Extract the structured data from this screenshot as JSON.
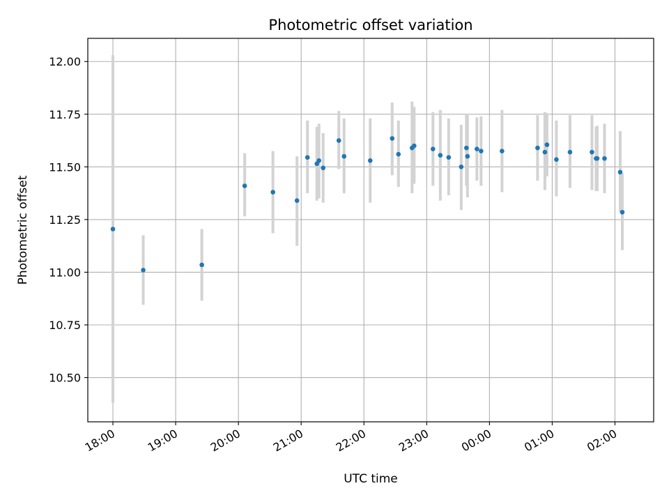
{
  "chart_data": {
    "type": "scatter",
    "title": "Photometric offset variation",
    "xlabel": "UTC time",
    "ylabel": "Photometric offset",
    "x_axis": "time",
    "xlim": [
      "17:36",
      "02:37"
    ],
    "ylim": [
      10.29,
      12.11
    ],
    "x_ticks": [
      "18:00",
      "19:00",
      "20:00",
      "21:00",
      "22:00",
      "23:00",
      "00:00",
      "01:00",
      "02:00"
    ],
    "y_ticks": [
      10.5,
      10.75,
      11.0,
      11.25,
      11.5,
      11.75,
      12.0
    ],
    "y_tick_labels": [
      "10.50",
      "10.75",
      "11.00",
      "11.25",
      "11.50",
      "11.75",
      "12.00"
    ],
    "grid": true,
    "colors": {
      "point": "#1f77b4",
      "errorbar": "#d3d3d3",
      "grid": "#b0b0b0"
    },
    "series": [
      {
        "points": [
          {
            "t": "18:00",
            "y": 11.205,
            "lo": 10.38,
            "hi": 12.03
          },
          {
            "t": "18:29",
            "y": 11.01,
            "lo": 10.845,
            "hi": 11.175
          },
          {
            "t": "19:25",
            "y": 11.035,
            "lo": 10.865,
            "hi": 11.205
          },
          {
            "t": "20:06",
            "y": 11.41,
            "lo": 11.265,
            "hi": 11.565
          },
          {
            "t": "20:33",
            "y": 11.38,
            "lo": 11.185,
            "hi": 11.575
          },
          {
            "t": "20:56",
            "y": 11.34,
            "lo": 11.125,
            "hi": 11.55
          },
          {
            "t": "21:06",
            "y": 11.545,
            "lo": 11.375,
            "hi": 11.72
          },
          {
            "t": "21:15",
            "y": 11.515,
            "lo": 11.34,
            "hi": 11.69
          },
          {
            "t": "21:17",
            "y": 11.53,
            "lo": 11.35,
            "hi": 11.705
          },
          {
            "t": "21:21",
            "y": 11.495,
            "lo": 11.33,
            "hi": 11.66
          },
          {
            "t": "21:36",
            "y": 11.625,
            "lo": 11.49,
            "hi": 11.765
          },
          {
            "t": "21:41",
            "y": 11.55,
            "lo": 11.375,
            "hi": 11.73
          },
          {
            "t": "22:06",
            "y": 11.53,
            "lo": 11.33,
            "hi": 11.73
          },
          {
            "t": "22:27",
            "y": 11.635,
            "lo": 11.46,
            "hi": 11.805
          },
          {
            "t": "22:33",
            "y": 11.56,
            "lo": 11.405,
            "hi": 11.72
          },
          {
            "t": "22:46",
            "y": 11.59,
            "lo": 11.375,
            "hi": 11.81
          },
          {
            "t": "22:48",
            "y": 11.6,
            "lo": 11.42,
            "hi": 11.785
          },
          {
            "t": "23:06",
            "y": 11.585,
            "lo": 11.41,
            "hi": 11.76
          },
          {
            "t": "23:13",
            "y": 11.555,
            "lo": 11.34,
            "hi": 11.77
          },
          {
            "t": "23:21",
            "y": 11.545,
            "lo": 11.365,
            "hi": 11.73
          },
          {
            "t": "23:33",
            "y": 11.5,
            "lo": 11.295,
            "hi": 11.7
          },
          {
            "t": "23:38",
            "y": 11.59,
            "lo": 11.41,
            "hi": 11.75
          },
          {
            "t": "23:39",
            "y": 11.55,
            "lo": 11.355,
            "hi": 11.745
          },
          {
            "t": "23:48",
            "y": 11.585,
            "lo": 11.435,
            "hi": 11.735
          },
          {
            "t": "23:52",
            "y": 11.575,
            "lo": 11.41,
            "hi": 11.74
          },
          {
            "t": "00:12",
            "y": 11.575,
            "lo": 11.38,
            "hi": 11.77
          },
          {
            "t": "00:46",
            "y": 11.59,
            "lo": 11.435,
            "hi": 11.745
          },
          {
            "t": "00:53",
            "y": 11.57,
            "lo": 11.39,
            "hi": 11.76
          },
          {
            "t": "00:55",
            "y": 11.605,
            "lo": 11.455,
            "hi": 11.755
          },
          {
            "t": "01:04",
            "y": 11.535,
            "lo": 11.36,
            "hi": 11.72
          },
          {
            "t": "01:17",
            "y": 11.57,
            "lo": 11.4,
            "hi": 11.745
          },
          {
            "t": "01:38",
            "y": 11.57,
            "lo": 11.39,
            "hi": 11.745
          },
          {
            "t": "01:42",
            "y": 11.54,
            "lo": 11.385,
            "hi": 11.69
          },
          {
            "t": "01:43",
            "y": 11.54,
            "lo": 11.385,
            "hi": 11.695
          },
          {
            "t": "01:50",
            "y": 11.54,
            "lo": 11.375,
            "hi": 11.705
          },
          {
            "t": "02:05",
            "y": 11.475,
            "lo": 11.285,
            "hi": 11.67
          },
          {
            "t": "02:07",
            "y": 11.285,
            "lo": 11.105,
            "hi": 11.47
          }
        ]
      }
    ]
  }
}
